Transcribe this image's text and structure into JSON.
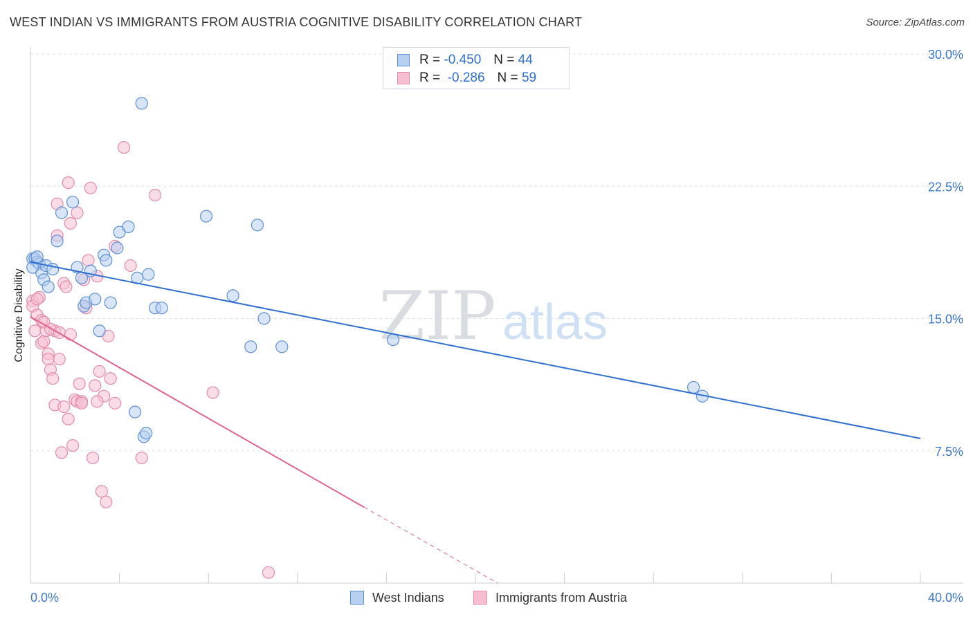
{
  "title": "WEST INDIAN VS IMMIGRANTS FROM AUSTRIA COGNITIVE DISABILITY CORRELATION CHART",
  "source": "Source: ZipAtlas.com",
  "watermark": {
    "zip": "ZIP",
    "atlas": "atlas"
  },
  "colors": {
    "blue": "#2f6fd0",
    "blue_fill": "#b7d0f0",
    "pink": "#e0628f",
    "pink_fill": "#f6bfd1",
    "grid": "#dde2e8",
    "axis_text": "#3a78d0"
  },
  "legend": {
    "rows": [
      {
        "r_label": "R =",
        "r_value": "-0.450",
        "n_label": "N =",
        "n_value": "44"
      },
      {
        "r_label": "R =",
        "r_value": "-0.286",
        "n_label": "N =",
        "n_value": "59"
      }
    ]
  },
  "chart_data": {
    "type": "scatter",
    "title": "WEST INDIAN VS IMMIGRANTS FROM AUSTRIA COGNITIVE DISABILITY CORRELATION CHART",
    "xlabel": "",
    "ylabel": "Cognitive Disability",
    "xlim": [
      0,
      40
    ],
    "ylim": [
      0,
      30
    ],
    "x_tick_labels": [
      "0.0%",
      "40.0%"
    ],
    "y_tick_labels": [
      "30.0%",
      "22.5%",
      "15.0%",
      "7.5%"
    ],
    "y_ticks": [
      30,
      22.5,
      15,
      7.5
    ],
    "legend_position": "bottom",
    "series": [
      {
        "name": "West Indians",
        "color": "#2f6fd0",
        "trend": {
          "x": [
            0,
            40
          ],
          "y": [
            18.2,
            8.2
          ],
          "dashed_from": null
        },
        "points": [
          [
            0.1,
            18.4
          ],
          [
            0.2,
            18.4
          ],
          [
            0.3,
            18.2
          ],
          [
            0.4,
            18.1
          ],
          [
            0.5,
            17.6
          ],
          [
            0.6,
            17.2
          ],
          [
            0.7,
            18.0
          ],
          [
            0.8,
            16.8
          ],
          [
            1.0,
            17.8
          ],
          [
            1.2,
            19.4
          ],
          [
            1.4,
            21.0
          ],
          [
            1.9,
            21.6
          ],
          [
            2.1,
            17.9
          ],
          [
            2.3,
            17.3
          ],
          [
            2.4,
            15.7
          ],
          [
            2.5,
            15.9
          ],
          [
            2.7,
            17.7
          ],
          [
            2.9,
            16.1
          ],
          [
            3.1,
            14.3
          ],
          [
            3.3,
            18.6
          ],
          [
            3.4,
            18.3
          ],
          [
            3.6,
            15.9
          ],
          [
            3.9,
            19.0
          ],
          [
            4.0,
            19.9
          ],
          [
            4.4,
            20.2
          ],
          [
            4.7,
            9.7
          ],
          [
            4.8,
            17.3
          ],
          [
            5.0,
            27.2
          ],
          [
            5.1,
            8.3
          ],
          [
            5.2,
            8.5
          ],
          [
            5.3,
            17.5
          ],
          [
            5.6,
            15.6
          ],
          [
            5.9,
            15.6
          ],
          [
            7.9,
            20.8
          ],
          [
            9.1,
            16.3
          ],
          [
            9.9,
            13.4
          ],
          [
            10.2,
            20.3
          ],
          [
            10.5,
            15.0
          ],
          [
            11.3,
            13.4
          ],
          [
            16.3,
            13.8
          ],
          [
            29.8,
            11.1
          ],
          [
            30.2,
            10.6
          ],
          [
            0.1,
            17.9
          ],
          [
            0.3,
            18.5
          ]
        ]
      },
      {
        "name": "Immigrants from Austria",
        "color": "#e0628f",
        "trend": {
          "x": [
            0,
            15
          ],
          "y": [
            15.1,
            4.3
          ],
          "dashed_to": [
            21,
            0
          ]
        },
        "points": [
          [
            0.1,
            16.0
          ],
          [
            0.1,
            15.7
          ],
          [
            0.2,
            14.3
          ],
          [
            0.3,
            15.2
          ],
          [
            0.4,
            16.2
          ],
          [
            0.5,
            13.6
          ],
          [
            0.5,
            14.9
          ],
          [
            0.6,
            13.7
          ],
          [
            0.7,
            14.3
          ],
          [
            0.8,
            13.0
          ],
          [
            0.8,
            12.7
          ],
          [
            0.9,
            12.1
          ],
          [
            1.0,
            11.6
          ],
          [
            1.1,
            10.1
          ],
          [
            1.1,
            14.3
          ],
          [
            1.2,
            21.5
          ],
          [
            1.2,
            19.7
          ],
          [
            1.3,
            12.7
          ],
          [
            1.4,
            7.4
          ],
          [
            1.5,
            10.0
          ],
          [
            1.5,
            17.0
          ],
          [
            1.6,
            16.8
          ],
          [
            1.7,
            9.3
          ],
          [
            1.7,
            22.7
          ],
          [
            1.8,
            14.1
          ],
          [
            1.8,
            20.4
          ],
          [
            1.9,
            7.8
          ],
          [
            2.0,
            10.4
          ],
          [
            2.1,
            10.3
          ],
          [
            2.1,
            21.0
          ],
          [
            2.2,
            11.3
          ],
          [
            2.3,
            10.3
          ],
          [
            2.3,
            10.2
          ],
          [
            2.5,
            15.6
          ],
          [
            2.6,
            18.3
          ],
          [
            2.7,
            22.4
          ],
          [
            2.8,
            7.1
          ],
          [
            2.9,
            11.2
          ],
          [
            3.0,
            17.4
          ],
          [
            3.1,
            12.0
          ],
          [
            3.2,
            5.2
          ],
          [
            3.3,
            10.6
          ],
          [
            3.4,
            4.6
          ],
          [
            3.5,
            14.0
          ],
          [
            3.6,
            11.6
          ],
          [
            3.8,
            10.2
          ],
          [
            3.8,
            19.1
          ],
          [
            4.2,
            24.7
          ],
          [
            4.5,
            18.0
          ],
          [
            5.0,
            7.1
          ],
          [
            5.6,
            22.0
          ],
          [
            8.2,
            10.8
          ],
          [
            10.7,
            0.6
          ],
          [
            0.3,
            16.1
          ],
          [
            0.6,
            14.8
          ],
          [
            0.9,
            14.4
          ],
          [
            1.3,
            14.2
          ],
          [
            2.4,
            17.2
          ],
          [
            3.0,
            10.3
          ]
        ]
      }
    ]
  },
  "bottom_legend": [
    {
      "label": "West Indians"
    },
    {
      "label": "Immigrants from Austria"
    }
  ]
}
